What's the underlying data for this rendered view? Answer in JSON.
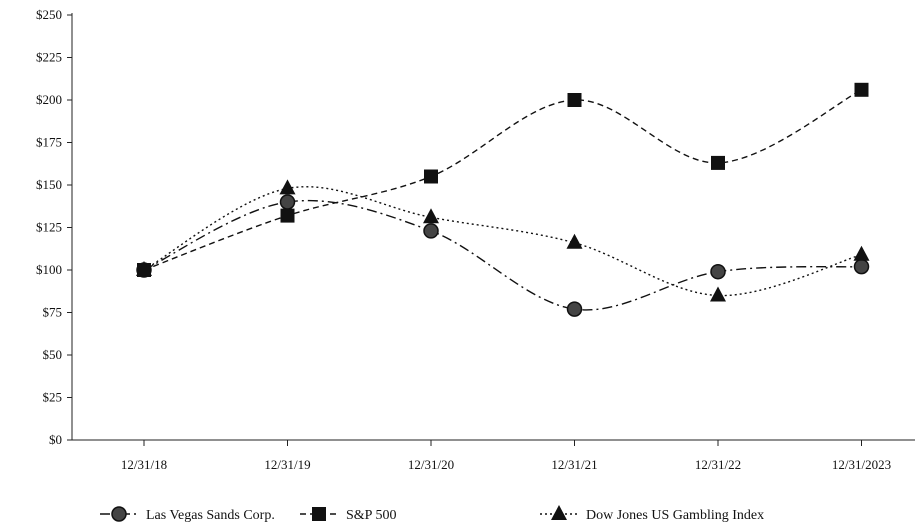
{
  "chart_data": {
    "type": "line",
    "title": "",
    "xlabel": "",
    "ylabel": "",
    "categories": [
      "12/31/18",
      "12/31/19",
      "12/31/20",
      "12/31/21",
      "12/31/22",
      "12/31/2023"
    ],
    "ylim": [
      0,
      250
    ],
    "yticks": [
      0,
      25,
      50,
      75,
      100,
      125,
      150,
      175,
      200,
      225,
      250
    ],
    "ytick_labels": [
      "$0",
      "$25",
      "$50",
      "$75",
      "$100",
      "$125",
      "$150",
      "$175",
      "$200",
      "$225",
      "$250"
    ],
    "grid": false,
    "legend_position": "bottom",
    "series": [
      {
        "name": "Las Vegas Sands Corp.",
        "values": [
          100,
          140,
          123,
          77,
          99,
          102
        ],
        "marker": "circle",
        "line_style": "dash-dot",
        "color": "#111111"
      },
      {
        "name": "S&P 500",
        "values": [
          100,
          132,
          155,
          200,
          163,
          206
        ],
        "marker": "square",
        "line_style": "dashed",
        "color": "#111111"
      },
      {
        "name": "Dow Jones US Gambling Index",
        "values": [
          100,
          148,
          131,
          116,
          85,
          109
        ],
        "marker": "triangle",
        "line_style": "dotted",
        "color": "#111111"
      }
    ]
  }
}
